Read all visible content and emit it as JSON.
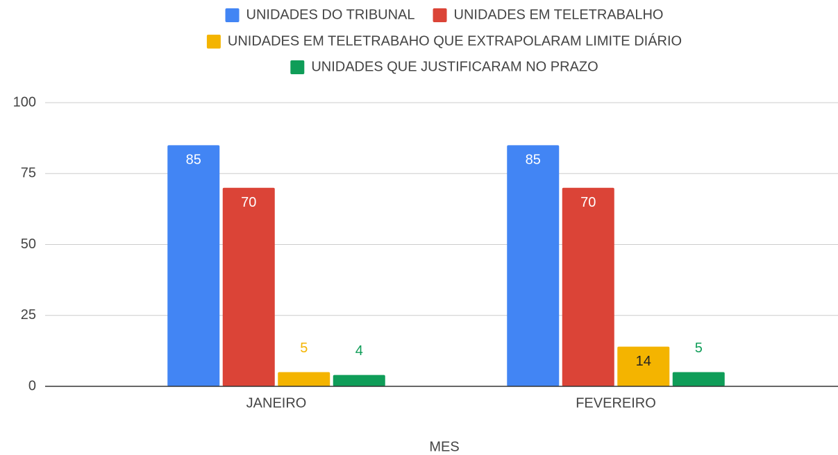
{
  "chart_data": {
    "type": "bar",
    "x_label": "MES",
    "categories": [
      "JANEIRO",
      "FEVEREIRO"
    ],
    "series": [
      {
        "name": "UNIDADES DO TRIBUNAL",
        "color": "#4285f4",
        "values": [
          85,
          85
        ]
      },
      {
        "name": "UNIDADES EM TELETRABALHO",
        "color": "#db4437",
        "values": [
          70,
          70
        ]
      },
      {
        "name": "UNIDADES EM TELETRABAHO QUE EXTRAPOLARAM LIMITE DIÁRIO",
        "color": "#f4b400",
        "values": [
          5,
          14
        ]
      },
      {
        "name": "UNIDADES QUE JUSTIFICARAM NO PRAZO",
        "color": "#0f9d58",
        "values": [
          4,
          5
        ]
      }
    ],
    "ylim": [
      0,
      100
    ],
    "yticks": [
      0,
      25,
      50,
      75,
      100
    ],
    "grid": true,
    "legend": "top"
  }
}
